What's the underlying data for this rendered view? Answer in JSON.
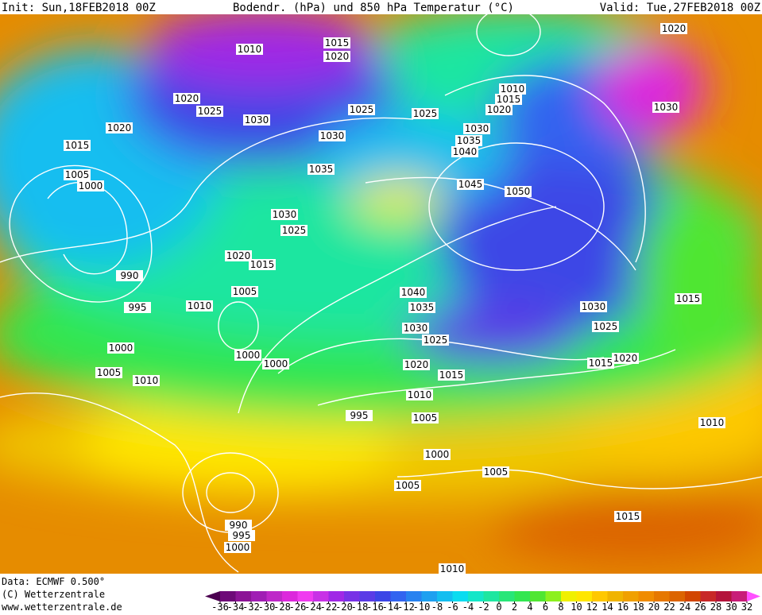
{
  "header": {
    "init": "Init: Sun,18FEB2018 00Z",
    "title": "Bodendr. (hPa) und 850 hPa Temperatur (°C)",
    "valid": "Valid: Tue,27FEB2018 00Z"
  },
  "footer": {
    "data": "Data: ECMWF  0.500°",
    "copyright": "(C) Wetterzentrale",
    "url": "www.wetterzentrale.de"
  },
  "colorbar": {
    "ticks": [
      -36,
      -34,
      -32,
      -30,
      -28,
      -26,
      -24,
      -22,
      -20,
      -18,
      -16,
      -14,
      -12,
      -10,
      -8,
      -6,
      -4,
      -2,
      0,
      2,
      4,
      6,
      8,
      10,
      12,
      14,
      16,
      18,
      20,
      22,
      24,
      26,
      28,
      30,
      32
    ],
    "colors": [
      "#4b0050",
      "#6e0a78",
      "#8c1496",
      "#a01eb4",
      "#be28c8",
      "#dc28dc",
      "#f03cf0",
      "#c832e6",
      "#a028e6",
      "#7832e6",
      "#5a3ce6",
      "#3c46e6",
      "#3264f0",
      "#2882f0",
      "#1ea0f0",
      "#14bef0",
      "#0adcf0",
      "#14e6c8",
      "#1ee6a0",
      "#28e678",
      "#32e650",
      "#50e632",
      "#8cf01e",
      "#f0f000",
      "#ffe600",
      "#ffc800",
      "#f0b400",
      "#f0a000",
      "#f08c00",
      "#e67800",
      "#dc6400",
      "#d24600",
      "#c82828",
      "#b4143c",
      "#c81e78",
      "#ff50ff"
    ]
  },
  "isobar_labels": [
    1010,
    1015,
    1020,
    1020,
    1025,
    1030,
    1020,
    1015,
    1005,
    1000,
    1025,
    1030,
    1035,
    1025,
    1010,
    1015,
    1020,
    1030,
    1035,
    1040,
    1045,
    1050,
    1030,
    1025,
    1020,
    1015,
    1005,
    990,
    995,
    1010,
    1000,
    1005,
    1010,
    1000,
    1000,
    1040,
    1035,
    1030,
    1025,
    1020,
    1015,
    1010,
    1005,
    995,
    1000,
    1005,
    1005,
    990,
    995,
    1000,
    1010,
    1015,
    1030,
    1025,
    1020,
    1015,
    1015,
    1010,
    1030,
    1020
  ]
}
